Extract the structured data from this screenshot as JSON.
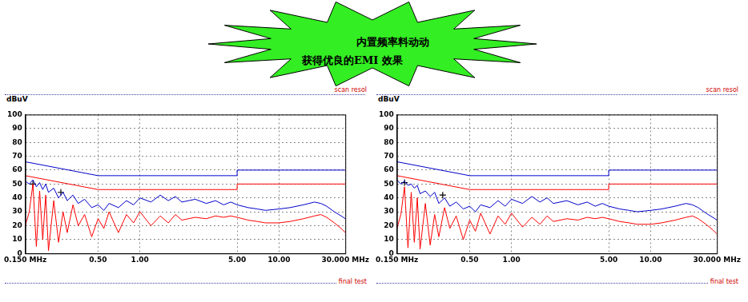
{
  "banner": {
    "lines": [
      "内置频率料动动",
      "获得优良的EMI 效果"
    ]
  },
  "chart_data": [
    {
      "type": "line",
      "y_label": "dBuV",
      "annotations": [
        "scan resol",
        "final test"
      ],
      "log": "x",
      "grid": true,
      "xlim": [
        0.15,
        30
      ],
      "ylim": [
        0,
        100
      ],
      "xticks": [
        {
          "value": 0.15,
          "label": "0.150 MHz"
        },
        {
          "value": 0.5,
          "label": "0.50"
        },
        {
          "value": 1,
          "label": "1.00"
        },
        {
          "value": 5,
          "label": "5.00"
        },
        {
          "value": 10,
          "label": "10.00"
        },
        {
          "value": 30,
          "label": "30.000 MHz"
        }
      ],
      "yticks": [
        0,
        10,
        20,
        30,
        40,
        50,
        60,
        70,
        80,
        90,
        100
      ],
      "series": [
        {
          "color": "#0000cc",
          "line_style": "solid",
          "x": [
            0.15,
            0.5,
            5,
            5,
            30
          ],
          "values": [
            66,
            56,
            56,
            60,
            60
          ]
        },
        {
          "color": "#ff0000",
          "line_style": "solid",
          "x": [
            0.15,
            0.5,
            5,
            5,
            30
          ],
          "values": [
            56,
            46,
            46,
            50,
            50
          ]
        },
        {
          "color": "#0000cc",
          "line_style": "solid",
          "x": [
            0.15,
            0.16,
            0.17,
            0.18,
            0.19,
            0.2,
            0.21,
            0.22,
            0.24,
            0.26,
            0.28,
            0.3,
            0.33,
            0.36,
            0.4,
            0.45,
            0.5,
            0.55,
            0.6,
            0.7,
            0.8,
            0.9,
            1,
            1.2,
            1.4,
            1.6,
            1.8,
            2,
            2.5,
            3,
            3.5,
            4,
            4.5,
            5,
            6,
            7,
            8,
            10,
            12,
            15,
            18,
            20,
            22,
            25,
            28,
            30
          ],
          "values": [
            52,
            50,
            53,
            48,
            51,
            46,
            50,
            44,
            47,
            40,
            44,
            38,
            42,
            36,
            39,
            33,
            35,
            31,
            36,
            33,
            38,
            35,
            40,
            37,
            42,
            38,
            41,
            37,
            39,
            36,
            38,
            35,
            37,
            35,
            33,
            32,
            31,
            32,
            33,
            35,
            37,
            36,
            34,
            30,
            27,
            25
          ]
        },
        {
          "color": "#ff0000",
          "line_style": "solid",
          "x": [
            0.15,
            0.16,
            0.17,
            0.18,
            0.19,
            0.2,
            0.21,
            0.22,
            0.24,
            0.26,
            0.28,
            0.3,
            0.33,
            0.36,
            0.4,
            0.45,
            0.5,
            0.55,
            0.6,
            0.7,
            0.8,
            0.9,
            1,
            1.2,
            1.4,
            1.6,
            1.8,
            2,
            2.5,
            3,
            3.5,
            4,
            4.5,
            5,
            6,
            7,
            8,
            10,
            12,
            15,
            18,
            20,
            22,
            25,
            28,
            30
          ],
          "values": [
            20,
            30,
            50,
            5,
            45,
            10,
            42,
            2,
            38,
            8,
            30,
            15,
            35,
            20,
            28,
            12,
            25,
            18,
            30,
            15,
            28,
            22,
            30,
            20,
            27,
            22,
            28,
            24,
            26,
            25,
            27,
            26,
            27,
            26,
            24,
            23,
            22,
            22,
            23,
            25,
            27,
            28,
            26,
            22,
            18,
            15
          ]
        },
        {
          "type": "scatter",
          "color": "#000000",
          "marker": "cross",
          "x": [
            0.17,
            0.27
          ],
          "values": [
            50,
            44
          ]
        }
      ]
    },
    {
      "type": "line",
      "y_label": "dBuV",
      "annotations": [
        "scan resol",
        "final test"
      ],
      "log": "x",
      "grid": true,
      "xlim": [
        0.15,
        30
      ],
      "ylim": [
        0,
        100
      ],
      "xticks": [
        {
          "value": 0.15,
          "label": "0.150 MHz"
        },
        {
          "value": 0.5,
          "label": "0.50"
        },
        {
          "value": 1,
          "label": "1.00"
        },
        {
          "value": 5,
          "label": "5.00"
        },
        {
          "value": 10,
          "label": "10.00"
        },
        {
          "value": 30,
          "label": "30.000 MHz"
        }
      ],
      "yticks": [
        0,
        10,
        20,
        30,
        40,
        50,
        60,
        70,
        80,
        90,
        100
      ],
      "series": [
        {
          "color": "#0000cc",
          "line_style": "solid",
          "x": [
            0.15,
            0.5,
            5,
            5,
            30
          ],
          "values": [
            66,
            56,
            56,
            60,
            60
          ]
        },
        {
          "color": "#ff0000",
          "line_style": "solid",
          "x": [
            0.15,
            0.5,
            5,
            5,
            30
          ],
          "values": [
            56,
            46,
            46,
            50,
            50
          ]
        },
        {
          "color": "#0000cc",
          "line_style": "solid",
          "x": [
            0.15,
            0.16,
            0.17,
            0.18,
            0.19,
            0.2,
            0.21,
            0.22,
            0.24,
            0.26,
            0.28,
            0.3,
            0.33,
            0.36,
            0.4,
            0.45,
            0.5,
            0.55,
            0.6,
            0.7,
            0.8,
            0.9,
            1,
            1.2,
            1.4,
            1.6,
            1.8,
            2,
            2.5,
            3,
            3.5,
            4,
            4.5,
            5,
            6,
            7,
            8,
            10,
            12,
            15,
            18,
            20,
            22,
            25,
            28,
            30
          ],
          "values": [
            53,
            50,
            52,
            49,
            50,
            47,
            49,
            43,
            45,
            41,
            44,
            36,
            40,
            34,
            37,
            32,
            34,
            30,
            35,
            33,
            38,
            34,
            39,
            36,
            41,
            37,
            40,
            36,
            38,
            35,
            37,
            34,
            36,
            34,
            32,
            31,
            30,
            31,
            32,
            34,
            36,
            35,
            33,
            29,
            26,
            24
          ]
        },
        {
          "color": "#ff0000",
          "line_style": "solid",
          "x": [
            0.15,
            0.16,
            0.17,
            0.18,
            0.19,
            0.2,
            0.21,
            0.22,
            0.24,
            0.26,
            0.28,
            0.3,
            0.33,
            0.36,
            0.4,
            0.45,
            0.5,
            0.55,
            0.6,
            0.7,
            0.8,
            0.9,
            1,
            1.2,
            1.4,
            1.6,
            1.8,
            2,
            2.5,
            3,
            3.5,
            4,
            4.5,
            5,
            6,
            7,
            8,
            10,
            12,
            15,
            18,
            20,
            22,
            25,
            28,
            30
          ],
          "values": [
            18,
            28,
            48,
            4,
            44,
            8,
            40,
            3,
            36,
            6,
            28,
            12,
            33,
            18,
            27,
            10,
            24,
            16,
            29,
            14,
            27,
            21,
            29,
            19,
            26,
            21,
            27,
            23,
            25,
            24,
            26,
            25,
            26,
            25,
            23,
            22,
            21,
            21,
            22,
            24,
            26,
            27,
            25,
            21,
            17,
            14
          ]
        },
        {
          "type": "scatter",
          "color": "#000000",
          "marker": "cross",
          "x": [
            0.17,
            0.32
          ],
          "values": [
            51,
            42
          ]
        }
      ]
    }
  ]
}
